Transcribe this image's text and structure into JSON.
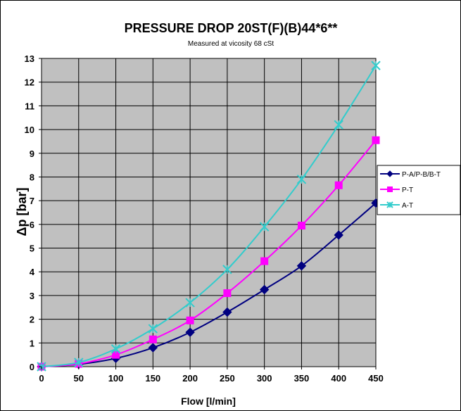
{
  "chart_data": {
    "type": "line",
    "title": "PRESSURE DROP 20ST(F)(B)44*6**",
    "subtitle": "Measured at vicosity 68 cSt",
    "xlabel": "Flow [l/min]",
    "ylabel": "Δp [bar]",
    "x": [
      0,
      50,
      100,
      150,
      200,
      250,
      300,
      350,
      400,
      450
    ],
    "xlim": [
      0,
      450
    ],
    "ylim": [
      0,
      13
    ],
    "xticks": [
      0,
      50,
      100,
      150,
      200,
      250,
      300,
      350,
      400,
      450
    ],
    "yticks": [
      0,
      1,
      2,
      3,
      4,
      5,
      6,
      7,
      8,
      9,
      10,
      11,
      12,
      13
    ],
    "grid": true,
    "plot_background": "#c0c0c0",
    "legend_position": "right",
    "series": [
      {
        "name": "P-A/P-B/B-T",
        "color": "#000080",
        "marker": "diamond",
        "values": [
          0,
          0.1,
          0.35,
          0.8,
          1.45,
          2.3,
          3.25,
          4.25,
          5.55,
          6.9
        ]
      },
      {
        "name": "P-T",
        "color": "#ff00ff",
        "marker": "square",
        "values": [
          0,
          0.12,
          0.5,
          1.15,
          1.95,
          3.1,
          4.45,
          5.95,
          7.65,
          9.55
        ]
      },
      {
        "name": "A-T",
        "color": "#33cccc",
        "marker": "x",
        "values": [
          0,
          0.18,
          0.75,
          1.6,
          2.7,
          4.1,
          5.9,
          7.9,
          10.2,
          12.7
        ]
      }
    ]
  }
}
